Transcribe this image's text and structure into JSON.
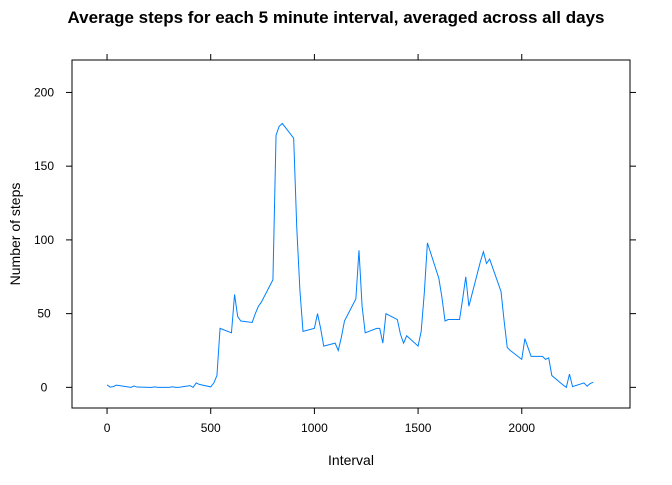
{
  "chart_data": {
    "type": "line",
    "title": "Average steps for each 5 minute interval, averaged across all days",
    "x_label": "Interval",
    "y_label": "Number of steps",
    "x": [
      0,
      15,
      30,
      45,
      100,
      115,
      130,
      145,
      200,
      215,
      230,
      245,
      300,
      315,
      330,
      345,
      400,
      415,
      430,
      445,
      500,
      515,
      530,
      545,
      600,
      615,
      630,
      645,
      700,
      715,
      730,
      745,
      800,
      815,
      830,
      845,
      900,
      915,
      930,
      945,
      1000,
      1015,
      1030,
      1045,
      1100,
      1115,
      1130,
      1145,
      1200,
      1215,
      1230,
      1245,
      1300,
      1315,
      1330,
      1345,
      1400,
      1415,
      1430,
      1445,
      1500,
      1515,
      1530,
      1545,
      1600,
      1615,
      1630,
      1645,
      1700,
      1715,
      1730,
      1745,
      1800,
      1815,
      1830,
      1845,
      1900,
      1915,
      1930,
      1945,
      2000,
      2015,
      2030,
      2045,
      2100,
      2115,
      2130,
      2145,
      2200,
      2215,
      2230,
      2245,
      2300,
      2315,
      2330,
      2345
    ],
    "series": [
      {
        "name": "steps",
        "color": "#0080ff",
        "values": [
          1.7,
          0.2,
          0.5,
          1.5,
          0.3,
          0,
          0.9,
          0.2,
          0,
          0,
          0.3,
          0,
          0,
          0.4,
          0,
          0,
          1.2,
          0,
          3,
          2,
          0.3,
          3,
          8,
          40,
          37,
          63,
          48,
          45,
          44,
          50,
          55,
          58,
          73,
          171,
          177,
          179,
          169,
          108,
          66,
          38,
          40,
          50,
          40,
          28,
          30,
          25,
          34,
          45,
          60,
          93,
          55,
          37,
          40,
          40,
          30,
          50,
          46,
          36,
          30,
          35,
          28,
          38,
          64,
          98,
          74,
          61,
          45,
          46,
          46,
          60,
          75,
          55,
          85,
          92,
          84,
          87,
          65,
          45,
          27,
          25,
          19,
          33,
          27,
          21,
          21,
          19,
          20,
          8,
          1.5,
          0,
          9,
          0.5,
          3,
          0.8,
          2.6,
          3.5
        ]
      }
    ],
    "xlim": [
      -169,
      2522
    ],
    "ylim": [
      -14,
      222
    ],
    "xticks": [
      0,
      500,
      1000,
      1500,
      2000
    ],
    "yticks": [
      0,
      50,
      100,
      150,
      200
    ]
  }
}
